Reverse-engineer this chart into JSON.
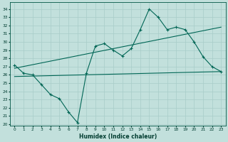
{
  "xlabel": "Humidex (Indice chaleur)",
  "background_color": "#c2e0dc",
  "grid_color": "#a8ccc8",
  "line_color": "#006655",
  "xlim": [
    -0.5,
    23.5
  ],
  "ylim": [
    19.8,
    34.8
  ],
  "yticks": [
    20,
    21,
    22,
    23,
    24,
    25,
    26,
    27,
    28,
    29,
    30,
    31,
    32,
    33,
    34
  ],
  "xticks": [
    0,
    1,
    2,
    3,
    4,
    5,
    6,
    7,
    8,
    9,
    10,
    11,
    12,
    13,
    14,
    15,
    16,
    17,
    18,
    19,
    20,
    21,
    22,
    23
  ],
  "line1_x": [
    0,
    1,
    2,
    3,
    4,
    5,
    6,
    7,
    8,
    9,
    10,
    11,
    12,
    13,
    14,
    15,
    16,
    17,
    18,
    19,
    20,
    21,
    22,
    23
  ],
  "line1_y": [
    27.2,
    26.2,
    26.0,
    24.8,
    23.6,
    23.1,
    21.5,
    20.2,
    26.2,
    29.5,
    29.8,
    29.0,
    28.3,
    29.2,
    31.5,
    34.0,
    33.0,
    31.5,
    31.8,
    31.5,
    30.0,
    28.2,
    27.0,
    26.4
  ],
  "line2_x": [
    0,
    23
  ],
  "line2_y": [
    26.8,
    31.8
  ],
  "line3_x": [
    0,
    23
  ],
  "line3_y": [
    25.8,
    26.4
  ],
  "marker_x": [
    0,
    1,
    2,
    3,
    4,
    5,
    6,
    7,
    8,
    9,
    10,
    11,
    12,
    13,
    14,
    15,
    16,
    17,
    18,
    19,
    20,
    21,
    22,
    23
  ],
  "marker_y": [
    27.2,
    26.2,
    26.0,
    24.8,
    23.6,
    23.1,
    21.5,
    20.2,
    26.2,
    29.5,
    29.8,
    29.0,
    28.3,
    29.2,
    31.5,
    34.0,
    33.0,
    31.5,
    31.8,
    31.5,
    30.0,
    28.2,
    27.0,
    26.4
  ]
}
